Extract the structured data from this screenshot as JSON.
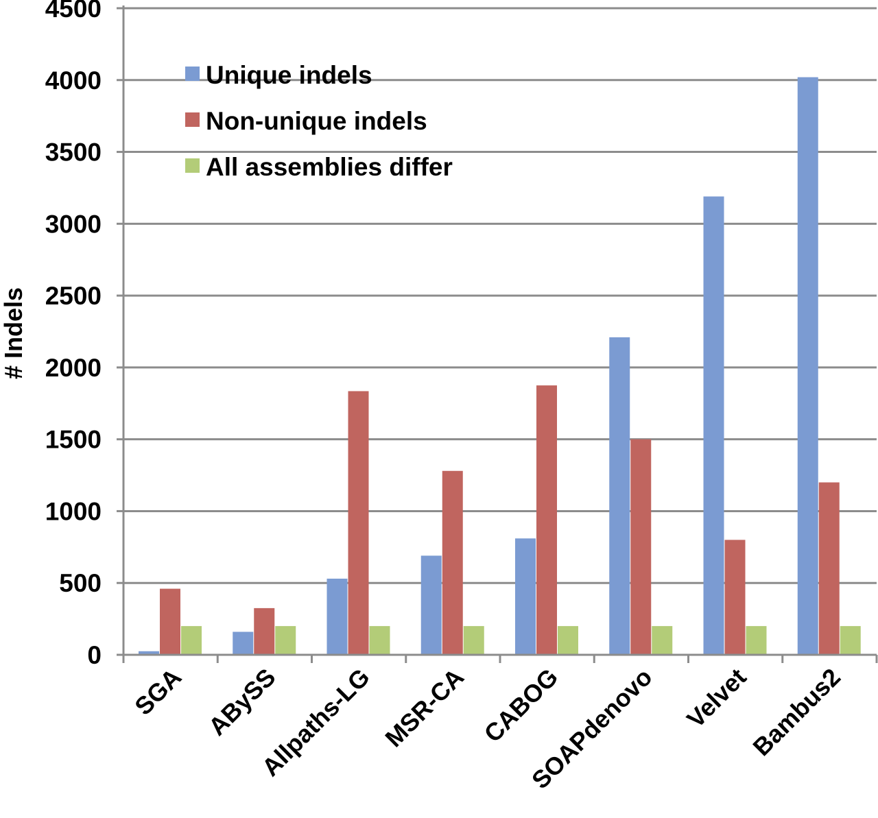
{
  "chart_data": {
    "type": "bar",
    "title": "",
    "xlabel": "",
    "ylabel": "# Indels",
    "ylim": [
      0,
      4500
    ],
    "yticks": [
      0,
      500,
      1000,
      1500,
      2000,
      2500,
      3000,
      3500,
      4000,
      4500
    ],
    "grid": true,
    "legend_position": "top-left",
    "categories": [
      "SGA",
      "ABySS",
      "Allpaths-LG",
      "MSR-CA",
      "CABOG",
      "SOAPdenovo",
      "Velvet",
      "Bambus2"
    ],
    "series": [
      {
        "name": "Unique indels",
        "color": "#7b9bd2",
        "values": [
          25,
          160,
          530,
          690,
          810,
          2210,
          3190,
          4020
        ]
      },
      {
        "name": "Non-unique indels",
        "color": "#c0655f",
        "values": [
          460,
          325,
          1835,
          1280,
          1875,
          1500,
          800,
          1200
        ]
      },
      {
        "name": "All assemblies differ",
        "color": "#b3cc78",
        "values": [
          200,
          200,
          200,
          200,
          200,
          200,
          200,
          200
        ]
      }
    ]
  }
}
